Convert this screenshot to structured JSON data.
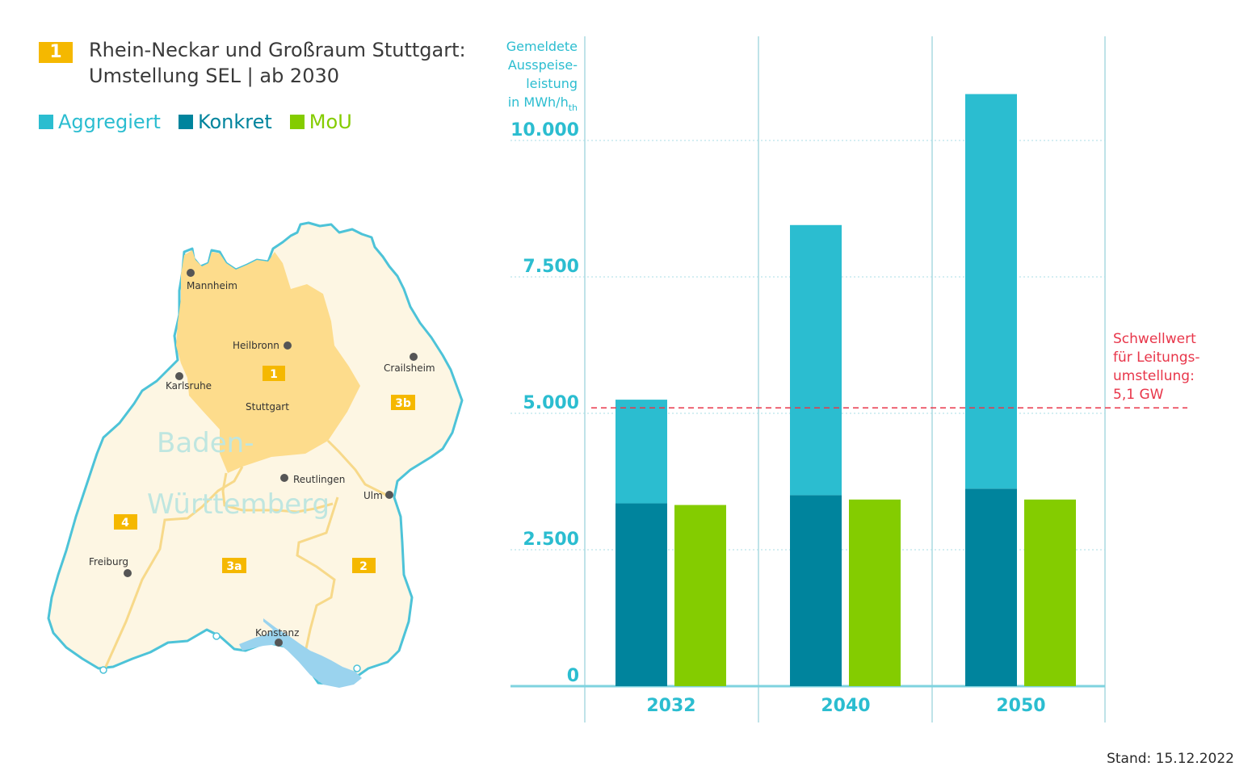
{
  "header": {
    "badge": "1",
    "title_line1": "Rhein-Neckar und Großraum Stuttgart:",
    "title_line2": "Umstellung SEL | ab 2030"
  },
  "legend": {
    "items": [
      {
        "label": "Aggregiert",
        "color": "#2bbdd0"
      },
      {
        "label": "Konkret",
        "color": "#00849d"
      },
      {
        "label": "MoU",
        "color": "#84cc00"
      }
    ]
  },
  "map": {
    "state_label_line1": "Baden-",
    "state_label_line2": "Württemberg",
    "cities": [
      "Mannheim",
      "Heilbronn",
      "Crailsheim",
      "Karlsruhe",
      "Stuttgart",
      "Reutlingen",
      "Ulm",
      "Freiburg",
      "Konstanz"
    ],
    "region_badges": [
      "1",
      "3b",
      "4",
      "3a",
      "2"
    ],
    "colors": {
      "outline": "#4dc3d8",
      "land": "#fdf6e3",
      "region1": "#fddc8c",
      "border": "#f7d98a",
      "lake": "#9ad3ee",
      "badge": "#f5b800"
    }
  },
  "chart_data": {
    "type": "bar",
    "stacked_series": [
      "Konkret",
      "Aggregiert"
    ],
    "categories": [
      "2032",
      "2040",
      "2050"
    ],
    "series": [
      {
        "name": "Konkret",
        "values": [
          3350,
          3500,
          3620
        ],
        "color": "#00849d"
      },
      {
        "name": "Aggregiert",
        "values": [
          1900,
          4950,
          7230
        ],
        "color": "#2bbdd0"
      },
      {
        "name": "MoU",
        "values": [
          3320,
          3420,
          3420
        ],
        "color": "#84cc00"
      }
    ],
    "ylabel_lines": [
      "Gemeldete",
      "Ausspeise-",
      "leistung",
      "in MWh/h"
    ],
    "ylabel_sub": "th",
    "yticks": [
      "0",
      "2.500",
      "5.000",
      "7.500",
      "10.000"
    ],
    "ylim": [
      0,
      12000
    ],
    "threshold": {
      "value": 5100,
      "label_lines": [
        "Schwellwert",
        "für Leitungs-",
        "umstellung:",
        "5,1 GW"
      ],
      "color": "#e8364a"
    },
    "grid": true,
    "legend_position": "top-left"
  },
  "footer": {
    "stand": "Stand: 15.12.2022"
  }
}
